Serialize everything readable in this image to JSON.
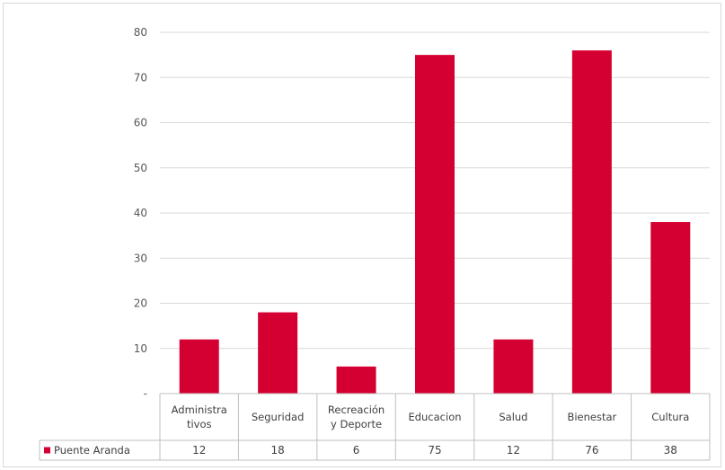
{
  "chart_data": {
    "type": "bar",
    "categories": [
      "Administra tivos",
      "Seguridad",
      "Recreación y Deporte",
      "Educacion",
      "Salud",
      "Bienestar",
      "Cultura"
    ],
    "category_lines": [
      [
        "Administra",
        "tivos"
      ],
      [
        "Seguridad"
      ],
      [
        "Recreación",
        "y Deporte"
      ],
      [
        "Educacion"
      ],
      [
        "Salud"
      ],
      [
        "Bienestar"
      ],
      [
        "Cultura"
      ]
    ],
    "series": [
      {
        "name": "Puente Aranda",
        "values": [
          12,
          18,
          6,
          75,
          12,
          76,
          38
        ],
        "color": "#d50032"
      }
    ],
    "ylim": [
      0,
      80
    ],
    "y_ticks": [
      0,
      10,
      20,
      30,
      40,
      50,
      60,
      70,
      80
    ],
    "y_tick_labels": [
      "-",
      "10",
      "20",
      "30",
      "40",
      "50",
      "60",
      "70",
      "80"
    ],
    "grid": true,
    "data_table": true,
    "legend_position": "data-table-left"
  }
}
